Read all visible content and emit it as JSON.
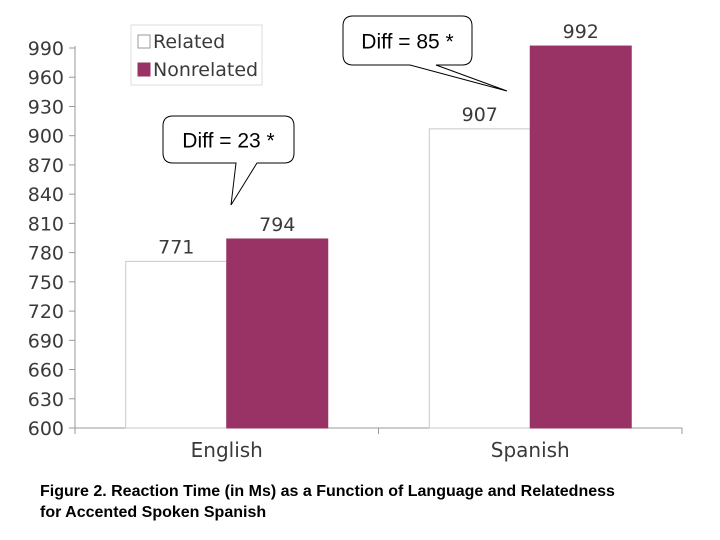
{
  "chart_data": {
    "type": "bar",
    "categories": [
      "English",
      "Spanish"
    ],
    "series": [
      {
        "name": "Related",
        "values": [
          771,
          907
        ],
        "color": "#ffffff"
      },
      {
        "name": "Nonrelated",
        "values": [
          794,
          992
        ],
        "color": "#993366"
      }
    ],
    "ylim": [
      600,
      990
    ],
    "yticks": [
      600,
      630,
      660,
      690,
      720,
      750,
      780,
      810,
      840,
      870,
      900,
      930,
      960,
      990
    ],
    "legend_position": "top-center",
    "grid": false,
    "annotations": [
      {
        "text": "Diff = 23 *",
        "category": "English"
      },
      {
        "text": "Diff = 85 *",
        "category": "Spanish"
      }
    ]
  },
  "caption": {
    "line1": "Figure 2. Reaction Time (in Ms) as a Function of Language and Relatedness",
    "line2": "for Accented Spoken Spanish"
  }
}
